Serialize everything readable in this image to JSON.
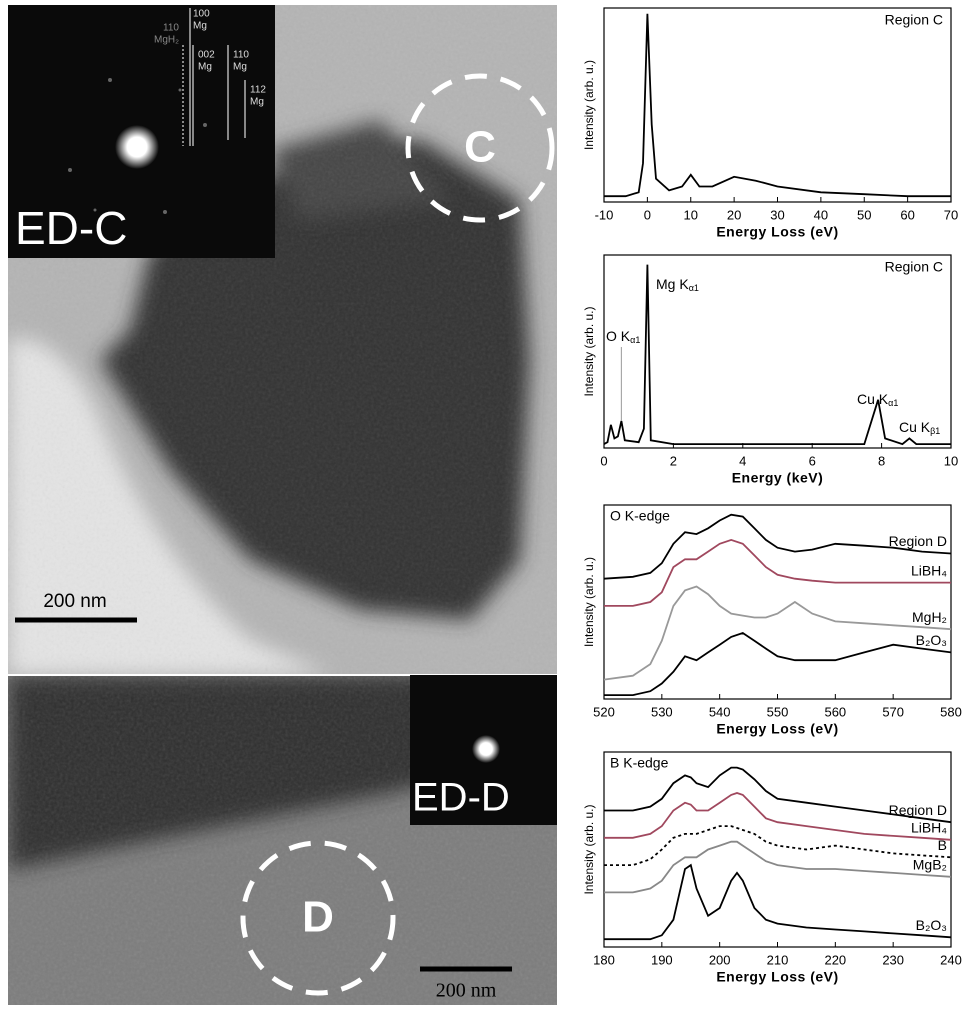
{
  "micrographs": {
    "top": {
      "inset_label": "ED-C",
      "region_label": "C",
      "scale_bar": "200 nm",
      "diffraction_labels": [
        {
          "index": "100",
          "phase": "Mg"
        },
        {
          "index": "110",
          "phase": "MgH₂"
        },
        {
          "index": "002",
          "phase": "Mg"
        },
        {
          "index": "110",
          "phase": "Mg"
        },
        {
          "index": "112",
          "phase": "Mg"
        }
      ]
    },
    "bottom": {
      "inset_label": "ED-D",
      "region_label": "D",
      "scale_bar": "200 nm"
    }
  },
  "chart_data": [
    {
      "type": "line",
      "annotation": "Region C",
      "x_label": "Energy Loss (eV)",
      "y_label": "Intensity (arb. u.)",
      "x": [
        -10,
        -5,
        -2,
        -1,
        0,
        1,
        2,
        5,
        8,
        10,
        12,
        15,
        20,
        25,
        30,
        40,
        50,
        60,
        70
      ],
      "values": [
        3,
        3,
        5,
        20,
        97,
        40,
        12,
        6,
        8,
        14,
        8,
        8,
        13,
        11,
        8,
        5,
        4,
        3,
        3
      ],
      "color": "#000000",
      "xlim": [
        -10,
        70
      ],
      "xticks": [
        -10,
        0,
        10,
        20,
        30,
        40,
        50,
        60,
        70
      ],
      "ylim": [
        0,
        100
      ]
    },
    {
      "type": "line",
      "annotation": "Region C",
      "x_label": "Energy (keV)",
      "y_label": "Intensity (arb. u.)",
      "peak_labels": [
        {
          "text": "O K",
          "sub": "α1"
        },
        {
          "text": "Mg K",
          "sub": "α1"
        },
        {
          "text": "Cu K",
          "sub": "α1"
        },
        {
          "text": "Cu K",
          "sub": "β1"
        }
      ],
      "x": [
        0,
        0.1,
        0.2,
        0.3,
        0.4,
        0.5,
        0.6,
        1.0,
        1.15,
        1.25,
        1.35,
        2,
        4,
        6,
        7.5,
        7.9,
        8.1,
        8.6,
        8.8,
        9.0,
        10
      ],
      "values": [
        2,
        3,
        12,
        5,
        6,
        14,
        4,
        3,
        10,
        95,
        4,
        2,
        2,
        2,
        2,
        25,
        5,
        2,
        5,
        2,
        2
      ],
      "color": "#000000",
      "xlim": [
        0,
        10
      ],
      "xticks": [
        0,
        2,
        4,
        6,
        8,
        10
      ],
      "ylim": [
        0,
        100
      ]
    },
    {
      "type": "line",
      "title": "O K-edge",
      "x_label": "Energy Loss (eV)",
      "y_label": "Intensity (arb. u.)",
      "x": [
        520,
        525,
        528,
        530,
        532,
        534,
        536,
        538,
        540,
        542,
        544,
        546,
        548,
        550,
        553,
        556,
        560,
        565,
        570,
        575,
        580
      ],
      "series": [
        {
          "name": "Region D",
          "color": "#000000",
          "values": [
            62,
            63,
            65,
            70,
            80,
            86,
            85,
            88,
            92,
            95,
            94,
            88,
            82,
            78,
            76,
            77,
            80,
            79,
            78,
            76,
            75
          ]
        },
        {
          "name": "LiBH₄",
          "color": "#a0485e",
          "values": [
            48,
            48,
            50,
            55,
            68,
            72,
            72,
            76,
            80,
            82,
            80,
            74,
            68,
            64,
            62,
            61,
            60,
            60,
            60,
            60,
            60
          ]
        },
        {
          "name": "MgH₂",
          "color": "#999999",
          "values": [
            10,
            12,
            18,
            30,
            48,
            56,
            58,
            54,
            48,
            44,
            43,
            42,
            42,
            44,
            50,
            44,
            40,
            39,
            38,
            37,
            36
          ]
        },
        {
          "name": "B₂O₃",
          "color": "#000000",
          "values": [
            2,
            2,
            4,
            8,
            14,
            22,
            20,
            24,
            28,
            32,
            34,
            30,
            26,
            22,
            20,
            20,
            20,
            24,
            28,
            26,
            24
          ]
        }
      ],
      "xlim": [
        520,
        580
      ],
      "xticks": [
        520,
        530,
        540,
        550,
        560,
        570,
        580
      ],
      "ylim": [
        0,
        100
      ]
    },
    {
      "type": "line",
      "title": "B K-edge",
      "x_label": "Energy Loss (eV)",
      "y_label": "Intensity (arb. u.)",
      "x": [
        180,
        185,
        188,
        190,
        192,
        194,
        195,
        196,
        198,
        200,
        202,
        203,
        204,
        206,
        208,
        210,
        215,
        220,
        225,
        230,
        235,
        240
      ],
      "series": [
        {
          "name": "Region D",
          "color": "#000000",
          "values": [
            70,
            70,
            72,
            76,
            84,
            88,
            87,
            84,
            82,
            88,
            92,
            92,
            91,
            86,
            80,
            76,
            74,
            72,
            70,
            68,
            66,
            64
          ]
        },
        {
          "name": "LiBH₄",
          "color": "#a0485e",
          "values": [
            56,
            56,
            58,
            62,
            70,
            74,
            73,
            70,
            70,
            74,
            78,
            79,
            78,
            72,
            66,
            64,
            62,
            60,
            58,
            57,
            56,
            55
          ]
        },
        {
          "name": "B",
          "color": "#000000",
          "dotted": true,
          "values": [
            42,
            42,
            45,
            50,
            56,
            58,
            58,
            58,
            60,
            62,
            62,
            61,
            60,
            58,
            54,
            52,
            50,
            52,
            50,
            48,
            47,
            46
          ]
        },
        {
          "name": "MgB₂",
          "color": "#888888",
          "values": [
            28,
            28,
            30,
            34,
            42,
            46,
            46,
            46,
            50,
            52,
            54,
            54,
            52,
            48,
            44,
            42,
            40,
            40,
            39,
            38,
            37,
            36
          ]
        },
        {
          "name": "B₂O₃",
          "color": "#000000",
          "values": [
            4,
            4,
            4,
            6,
            14,
            40,
            42,
            30,
            16,
            20,
            34,
            38,
            34,
            20,
            14,
            12,
            10,
            9,
            8,
            7,
            6,
            5
          ]
        }
      ],
      "xlim": [
        180,
        240
      ],
      "xticks": [
        180,
        190,
        200,
        210,
        220,
        230,
        240
      ],
      "ylim": [
        0,
        100
      ]
    }
  ]
}
